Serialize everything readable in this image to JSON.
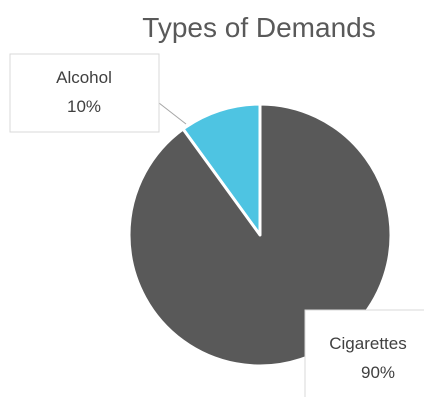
{
  "chart_data": {
    "type": "pie",
    "title": "Types of Demands",
    "slices": [
      {
        "label": "Cigarettes",
        "value": 90,
        "value_label": "90%",
        "color": "#595959"
      },
      {
        "label": "Alcohol",
        "value": 10,
        "value_label": "10%",
        "color": "#4ec4e2"
      }
    ],
    "data_labels": "callouts",
    "legend": "none",
    "start_angle_deg": 0,
    "direction": "counterclockwise"
  }
}
